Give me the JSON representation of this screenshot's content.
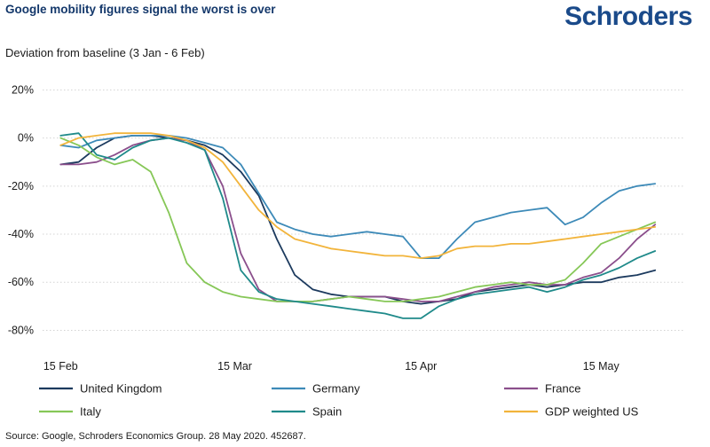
{
  "header": {
    "title": "Google mobility figures signal the worst is over",
    "logo": "Schroders"
  },
  "subtitle": "Deviation from baseline  (3 Jan - 6 Feb)",
  "source": "Source: Google, Schroders Economics Group. 28 May 2020. 452687.",
  "chart_data": {
    "type": "line",
    "title": "Google mobility figures signal the worst is over",
    "ylabel": "Deviation from baseline  (3 Jan - 6 Feb)",
    "xlabel": "",
    "x": [
      0,
      3,
      6,
      9,
      12,
      15,
      18,
      21,
      24,
      27,
      30,
      33,
      36,
      39,
      42,
      45,
      48,
      51,
      54,
      57,
      60,
      63,
      66,
      69,
      72,
      75,
      78,
      81,
      84,
      87,
      90,
      93,
      96,
      99
    ],
    "x_units": "days since 15 Feb 2020",
    "xticks": [
      {
        "label": "15 Feb",
        "value": 0
      },
      {
        "label": "15 Mar",
        "value": 29
      },
      {
        "label": "15 Apr",
        "value": 60
      },
      {
        "label": "15 May",
        "value": 90
      }
    ],
    "yticks": [
      {
        "label": "20%",
        "value": 20
      },
      {
        "label": "0%",
        "value": 0
      },
      {
        "label": "-20%",
        "value": -20
      },
      {
        "label": "-40%",
        "value": -40
      },
      {
        "label": "-60%",
        "value": -60
      },
      {
        "label": "-80%",
        "value": -80
      }
    ],
    "ylim": [
      -85,
      22
    ],
    "xlim": [
      -3,
      104
    ],
    "grid": true,
    "legend": "bottom",
    "series": [
      {
        "name": "United Kingdom",
        "color": "#1c3a5e",
        "values": [
          -11,
          -10,
          -4,
          0,
          1,
          1,
          0,
          -1,
          -3,
          -7,
          -14,
          -24,
          -42,
          -57,
          -63,
          -65,
          -66,
          -66,
          -66,
          -68,
          -69,
          -68,
          -67,
          -64,
          -63,
          -62,
          -61,
          -62,
          -61,
          -60,
          -60,
          -58,
          -57,
          -55
        ]
      },
      {
        "name": "Germany",
        "color": "#3d8ab8",
        "values": [
          -3,
          -4,
          -1,
          0,
          1,
          1,
          1,
          0,
          -2,
          -4,
          -11,
          -23,
          -35,
          -38,
          -40,
          -41,
          -40,
          -39,
          -40,
          -41,
          -50,
          -50,
          -42,
          -35,
          -33,
          -31,
          -30,
          -29,
          -36,
          -33,
          -27,
          -22,
          -20,
          -19
        ]
      },
      {
        "name": "France",
        "color": "#8b4f8c",
        "values": [
          -11,
          -11,
          -10,
          -7,
          -3,
          -1,
          0,
          -1,
          -5,
          -20,
          -48,
          -63,
          -68,
          -68,
          -68,
          -67,
          -66,
          -66,
          -66,
          -67,
          -68,
          -68,
          -66,
          -64,
          -62,
          -61,
          -60,
          -61,
          -61,
          -58,
          -56,
          -50,
          -42,
          -36
        ]
      },
      {
        "name": "Italy",
        "color": "#86c757",
        "values": [
          0,
          -3,
          -8,
          -11,
          -9,
          -14,
          -31,
          -52,
          -60,
          -64,
          -66,
          -67,
          -68,
          -68,
          -68,
          -67,
          -66,
          -67,
          -68,
          -68,
          -67,
          -66,
          -64,
          -62,
          -61,
          -60,
          -61,
          -61,
          -59,
          -52,
          -44,
          -41,
          -38,
          -35
        ]
      },
      {
        "name": "Spain",
        "color": "#1f8a8a",
        "values": [
          1,
          2,
          -7,
          -9,
          -4,
          -1,
          0,
          -2,
          -5,
          -25,
          -55,
          -64,
          -67,
          -68,
          -69,
          -70,
          -71,
          -72,
          -73,
          -75,
          -75,
          -70,
          -67,
          -65,
          -64,
          -63,
          -62,
          -64,
          -62,
          -59,
          -57,
          -54,
          -50,
          -47
        ]
      },
      {
        "name": "GDP weighted US",
        "color": "#f2b43b",
        "values": [
          -3,
          0,
          1,
          2,
          2,
          2,
          1,
          -1,
          -4,
          -10,
          -20,
          -30,
          -37,
          -42,
          -44,
          -46,
          -47,
          -48,
          -49,
          -49,
          -50,
          -49,
          -46,
          -45,
          -45,
          -44,
          -44,
          -43,
          -42,
          -41,
          -40,
          -39,
          -38,
          -37
        ]
      }
    ]
  }
}
